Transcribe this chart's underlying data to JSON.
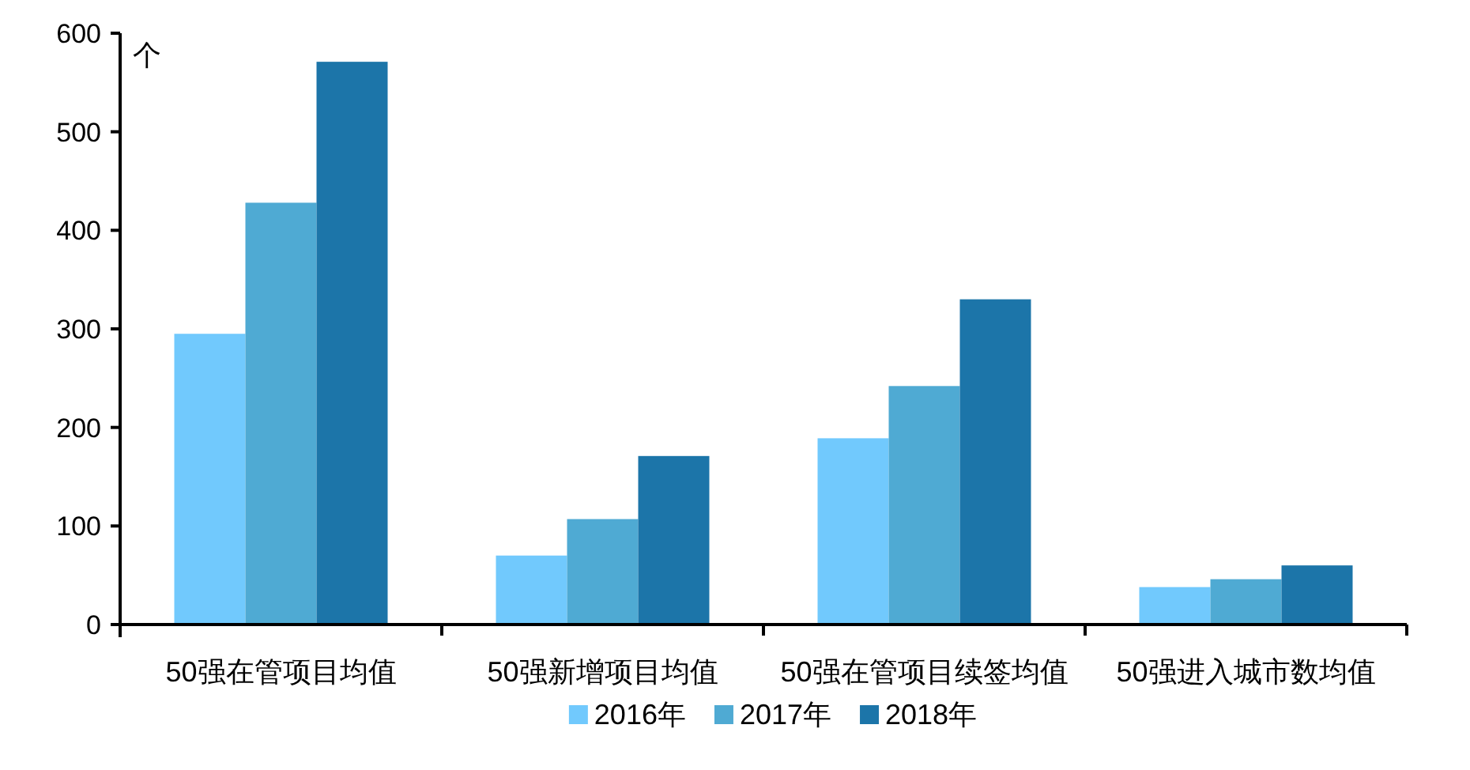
{
  "chart_data": {
    "type": "bar",
    "ylabel": "个",
    "categories": [
      "50强在管项目均值",
      "50强新增项目均值",
      "50强在管项目续签均值",
      "50强进入城市数均值"
    ],
    "series": [
      {
        "name": "2016年",
        "color": "#71c9fd",
        "values": [
          295,
          70,
          189,
          38
        ]
      },
      {
        "name": "2017年",
        "color": "#4faad3",
        "values": [
          428,
          107,
          242,
          46
        ]
      },
      {
        "name": "2018年",
        "color": "#1c75a9",
        "values": [
          571,
          171,
          330,
          60
        ]
      }
    ],
    "ylim": [
      0,
      600
    ],
    "yticks": [
      0,
      100,
      200,
      300,
      400,
      500,
      600
    ],
    "grid": false,
    "legend": "bottom"
  }
}
